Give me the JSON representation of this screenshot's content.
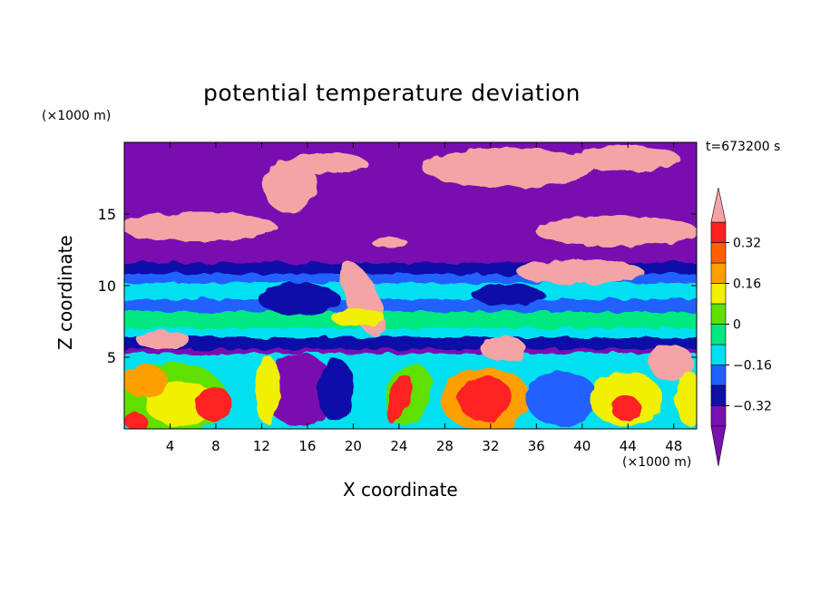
{
  "chart_data": {
    "type": "contour",
    "title": "potential temperature deviation",
    "time_label": "t=673200 s",
    "xlabel": "X coordinate",
    "ylabel": "Z coordinate",
    "x_unit": "(×1000 m)",
    "y_unit": "(×1000 m)",
    "xlim": [
      0,
      50
    ],
    "ylim": [
      0,
      20
    ],
    "x_ticks": [
      4,
      8,
      12,
      16,
      20,
      24,
      28,
      32,
      36,
      40,
      44,
      48
    ],
    "y_ticks": [
      5,
      10,
      15
    ],
    "colorbar": {
      "levels": [
        -0.4,
        -0.32,
        -0.24,
        -0.16,
        -0.08,
        0,
        0.08,
        0.16,
        0.24,
        0.32,
        0.4
      ],
      "tick_labels": [
        "0.32",
        "0.16",
        "0",
        "−0.16",
        "−0.32"
      ],
      "tick_values": [
        0.32,
        0.16,
        0,
        -0.16,
        -0.32
      ],
      "colors": [
        "#7a10b0",
        "#1010a8",
        "#2060ff",
        "#00e0f0",
        "#00e880",
        "#60e000",
        "#f0f000",
        "#ffa000",
        "#ff6000",
        "#ff2020",
        "#f4a4a4"
      ],
      "over_color": "#f4a4a4",
      "under_color": "#7a10b0"
    }
  }
}
